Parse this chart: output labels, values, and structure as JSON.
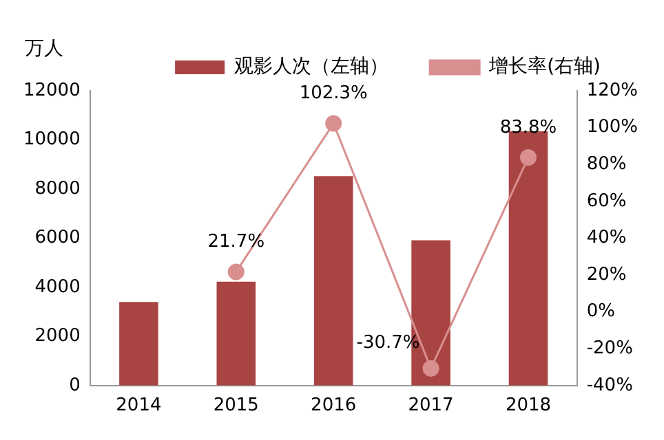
{
  "chart_data": {
    "type": "bar",
    "ylabel": "万人",
    "categories": [
      "2014",
      "2015",
      "2016",
      "2017",
      "2018"
    ],
    "series": [
      {
        "name": "观影人次（左轴）",
        "color": "#a84442",
        "values": [
          3400,
          4230,
          8520,
          5910,
          10350
        ]
      },
      {
        "name": "增长率(右轴)",
        "type": "line",
        "axis": "y2",
        "color": "#d98f8f",
        "marker": "circle",
        "values": [
          null,
          21.7,
          102.3,
          -30.7,
          83.8
        ],
        "value_labels": [
          null,
          "21.7%",
          "102.3%",
          "-30.7%",
          "83.8%"
        ]
      }
    ],
    "ylim": [
      0,
      12000
    ],
    "yticks": [
      0,
      2000,
      4000,
      6000,
      8000,
      10000,
      12000
    ],
    "y2lim": [
      -40,
      120
    ],
    "y2ticks": [
      {
        "value": -40,
        "label": "-40%"
      },
      {
        "value": -20,
        "label": "-20%"
      },
      {
        "value": 0,
        "label": "0%"
      },
      {
        "value": 20,
        "label": "20%"
      },
      {
        "value": 40,
        "label": "40%"
      },
      {
        "value": 60,
        "label": "60%"
      },
      {
        "value": 80,
        "label": "80%"
      },
      {
        "value": 100,
        "label": "100%"
      },
      {
        "value": 120,
        "label": "120%"
      }
    ],
    "grid": false,
    "legend": "top"
  }
}
